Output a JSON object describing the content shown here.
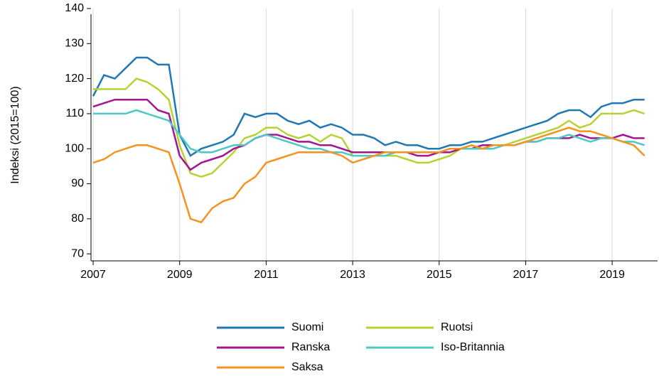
{
  "chart_data": {
    "type": "line",
    "y_label": "Indeksi (2015=100)",
    "x": [
      2007,
      2007.25,
      2007.5,
      2007.75,
      2008,
      2008.25,
      2008.5,
      2008.75,
      2009,
      2009.25,
      2009.5,
      2009.75,
      2010,
      2010.25,
      2010.5,
      2010.75,
      2011,
      2011.25,
      2011.5,
      2011.75,
      2012,
      2012.25,
      2012.5,
      2012.75,
      2013,
      2013.25,
      2013.5,
      2013.75,
      2014,
      2014.25,
      2014.5,
      2014.75,
      2015,
      2015.25,
      2015.5,
      2015.75,
      2016,
      2016.25,
      2016.5,
      2016.75,
      2017,
      2017.25,
      2017.5,
      2017.75,
      2018,
      2018.25,
      2018.5,
      2018.75,
      2019,
      2019.25,
      2019.5,
      2019.75
    ],
    "series": [
      {
        "name": "Suomi",
        "color": "#1f78b4",
        "values": [
          115,
          121,
          120,
          123,
          126,
          126,
          124,
          124,
          104,
          98,
          100,
          101,
          102,
          104,
          110,
          109,
          110,
          110,
          108,
          107,
          108,
          106,
          107,
          106,
          104,
          104,
          103,
          101,
          102,
          101,
          101,
          100,
          100,
          101,
          101,
          102,
          102,
          103,
          104,
          105,
          106,
          107,
          108,
          110,
          111,
          111,
          109,
          112,
          113,
          113,
          114,
          114
        ]
      },
      {
        "name": "Ruotsi",
        "color": "#b5d334",
        "values": [
          117,
          117,
          117,
          117,
          120,
          119,
          117,
          114,
          101,
          93,
          92,
          93,
          96,
          99,
          103,
          104,
          106,
          106,
          104,
          103,
          104,
          102,
          104,
          103,
          98,
          98,
          98,
          98,
          98,
          97,
          96,
          96,
          97,
          98,
          100,
          101,
          100,
          101,
          101,
          102,
          103,
          104,
          105,
          106,
          108,
          106,
          107,
          110,
          110,
          110,
          111,
          110
        ]
      },
      {
        "name": "Ranska",
        "color": "#a3168f",
        "values": [
          112,
          113,
          114,
          114,
          114,
          114,
          111,
          110,
          98,
          94,
          96,
          97,
          98,
          100,
          101,
          103,
          104,
          104,
          103,
          102,
          102,
          101,
          101,
          100,
          99,
          99,
          99,
          99,
          99,
          99,
          98,
          98,
          99,
          99,
          100,
          100,
          101,
          101,
          101,
          101,
          102,
          102,
          103,
          103,
          103,
          104,
          103,
          103,
          103,
          104,
          103,
          103
        ]
      },
      {
        "name": "Iso-Britannia",
        "color": "#4fc7c7",
        "values": [
          110,
          110,
          110,
          110,
          111,
          110,
          109,
          108,
          104,
          100,
          99,
          99,
          100,
          101,
          101,
          103,
          104,
          103,
          102,
          101,
          100,
          100,
          99,
          99,
          98,
          98,
          98,
          98,
          99,
          99,
          99,
          99,
          99,
          100,
          100,
          100,
          100,
          100,
          101,
          101,
          102,
          102,
          103,
          103,
          104,
          103,
          102,
          103,
          103,
          102,
          102,
          101
        ]
      },
      {
        "name": "Saksa",
        "color": "#f6921e",
        "values": [
          96,
          97,
          99,
          100,
          101,
          101,
          100,
          99,
          90,
          80,
          79,
          83,
          85,
          86,
          90,
          92,
          96,
          97,
          98,
          99,
          99,
          99,
          99,
          98,
          96,
          97,
          98,
          99,
          99,
          99,
          99,
          99,
          99,
          100,
          100,
          101,
          100,
          101,
          101,
          101,
          102,
          103,
          104,
          105,
          106,
          105,
          105,
          104,
          103,
          102,
          101,
          98
        ]
      }
    ],
    "xlim": [
      2006.95,
      2020.05
    ],
    "xticks": [
      2007,
      2009,
      2011,
      2013,
      2015,
      2017,
      2019
    ],
    "ylim": [
      68,
      140
    ],
    "yticks": [
      70,
      80,
      90,
      100,
      110,
      120,
      130,
      140
    ],
    "grid": "x"
  }
}
